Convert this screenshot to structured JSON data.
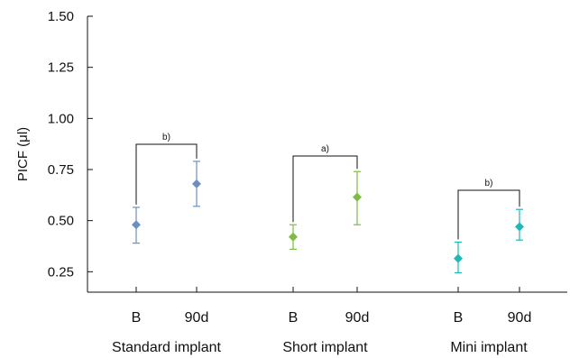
{
  "chart_data": {
    "type": "scatter",
    "title": "",
    "ylabel": "PICF (μl)",
    "xlabel": "",
    "ylim": [
      0.15,
      1.5
    ],
    "yticks": [
      "0.25",
      "0.50",
      "0.75",
      "1.00",
      "1.25",
      "1.50"
    ],
    "yticks_values": [
      0.25,
      0.5,
      0.75,
      1.0,
      1.25,
      1.5
    ],
    "grid": false,
    "groups": [
      {
        "name": "Standard implant",
        "color": "#6b8fbf",
        "points": [
          {
            "label": "B",
            "value": 0.48,
            "err_low": 0.39,
            "err_high": 0.565
          },
          {
            "label": "90d",
            "value": 0.68,
            "err_low": 0.57,
            "err_high": 0.79
          }
        ],
        "significance": "b)"
      },
      {
        "name": "Short implant",
        "color": "#7dbb42",
        "points": [
          {
            "label": "B",
            "value": 0.42,
            "err_low": 0.36,
            "err_high": 0.48
          },
          {
            "label": "90d",
            "value": 0.615,
            "err_low": 0.48,
            "err_high": 0.74
          }
        ],
        "significance": "a)"
      },
      {
        "name": "Mini implant",
        "color": "#1fb8b8",
        "points": [
          {
            "label": "B",
            "value": 0.315,
            "err_low": 0.245,
            "err_high": 0.395
          },
          {
            "label": "90d",
            "value": 0.47,
            "err_low": 0.405,
            "err_high": 0.555
          }
        ],
        "significance": "b)"
      }
    ]
  }
}
